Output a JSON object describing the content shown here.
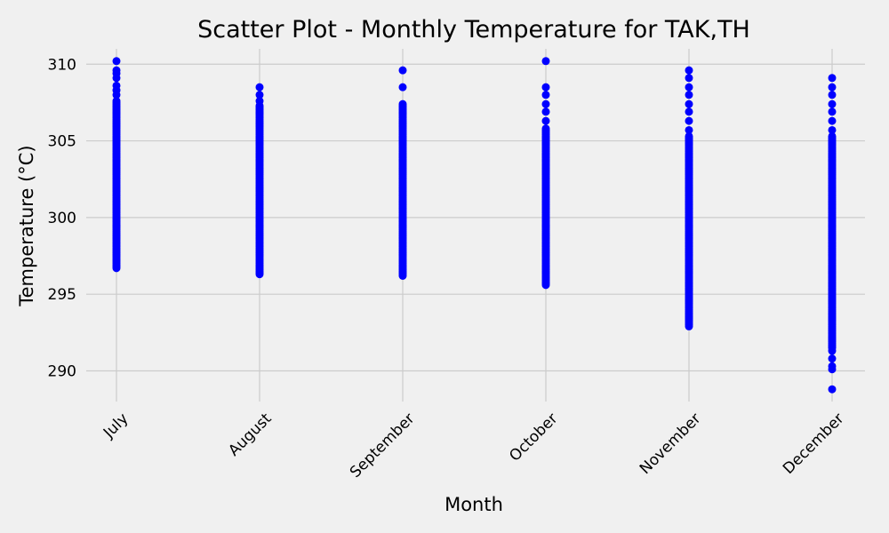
{
  "chart_data": {
    "type": "scatter",
    "title": "Scatter Plot - Monthly Temperature for TAK,TH",
    "xlabel": "Month",
    "ylabel": "Temperature (°C)",
    "categories": [
      "July",
      "August",
      "September",
      "October",
      "November",
      "December"
    ],
    "ylim": [
      288,
      311
    ],
    "yticks": [
      290,
      295,
      300,
      305,
      310
    ],
    "grid": true,
    "marker_color": "#0000ff",
    "series": [
      {
        "points": [
          {
            "month": "July",
            "min": 296.7,
            "max": 307.6,
            "outliers": [
              308.0,
              308.3,
              308.6,
              309.1,
              309.4,
              309.6,
              310.2
            ]
          },
          {
            "month": "August",
            "min": 296.3,
            "max": 307.3,
            "outliers": [
              307.6,
              308.0,
              308.5
            ]
          },
          {
            "month": "September",
            "min": 296.2,
            "max": 307.4,
            "outliers": [
              308.5,
              309.6
            ]
          },
          {
            "month": "October",
            "min": 295.6,
            "max": 305.8,
            "outliers": [
              306.3,
              306.9,
              307.4,
              308.0,
              308.5,
              310.2
            ]
          },
          {
            "month": "November",
            "min": 292.9,
            "max": 305.3,
            "outliers": [
              305.7,
              306.3,
              306.9,
              307.4,
              308.0,
              308.5,
              309.1,
              309.6
            ]
          },
          {
            "month": "December",
            "min": 291.5,
            "max": 305.3,
            "outliers": [
              288.8,
              290.1,
              290.3,
              290.8,
              291.3,
              305.7,
              306.3,
              306.9,
              307.4,
              308.0,
              308.5,
              309.1
            ]
          }
        ]
      }
    ]
  }
}
